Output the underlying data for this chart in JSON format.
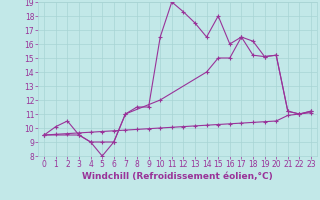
{
  "xlabel": "Windchill (Refroidissement éolien,°C)",
  "xlim": [
    -0.5,
    23.5
  ],
  "ylim": [
    8,
    19
  ],
  "xticks": [
    0,
    1,
    2,
    3,
    4,
    5,
    6,
    7,
    8,
    9,
    10,
    11,
    12,
    13,
    14,
    15,
    16,
    17,
    18,
    19,
    20,
    21,
    22,
    23
  ],
  "yticks": [
    8,
    9,
    10,
    11,
    12,
    13,
    14,
    15,
    16,
    17,
    18,
    19
  ],
  "bg_color": "#c2e8e8",
  "grid_color": "#a8d4d4",
  "line_color": "#993399",
  "line1_x": [
    0,
    1,
    2,
    3,
    4,
    5,
    6,
    7,
    8,
    9,
    10,
    11,
    12,
    13,
    14,
    15,
    16,
    17,
    18,
    19,
    20,
    21,
    22,
    23
  ],
  "line1_y": [
    9.5,
    10.1,
    10.5,
    9.5,
    9.0,
    8.0,
    9.0,
    11.0,
    11.5,
    11.5,
    16.5,
    19.0,
    18.3,
    17.5,
    16.5,
    18.0,
    16.0,
    16.5,
    16.2,
    15.1,
    15.2,
    11.2,
    11.0,
    11.2
  ],
  "line2_x": [
    0,
    3,
    4,
    5,
    6,
    7,
    10,
    14,
    15,
    16,
    17,
    18,
    19,
    20,
    21,
    22,
    23
  ],
  "line2_y": [
    9.5,
    9.5,
    9.0,
    9.0,
    9.0,
    11.0,
    12.0,
    14.0,
    15.0,
    15.0,
    16.5,
    15.2,
    15.1,
    15.2,
    11.2,
    11.0,
    11.2
  ],
  "line3_x": [
    0,
    1,
    2,
    3,
    4,
    5,
    6,
    7,
    8,
    9,
    10,
    11,
    12,
    13,
    14,
    15,
    16,
    17,
    18,
    19,
    20,
    21,
    22,
    23
  ],
  "line3_y": [
    9.5,
    9.55,
    9.6,
    9.65,
    9.7,
    9.75,
    9.8,
    9.85,
    9.9,
    9.95,
    10.0,
    10.05,
    10.1,
    10.15,
    10.2,
    10.25,
    10.3,
    10.35,
    10.4,
    10.45,
    10.5,
    10.9,
    11.0,
    11.1
  ],
  "marker": "+",
  "markersize": 3,
  "linewidth": 0.8,
  "tick_fontsize": 5.5,
  "label_fontsize": 6.5
}
